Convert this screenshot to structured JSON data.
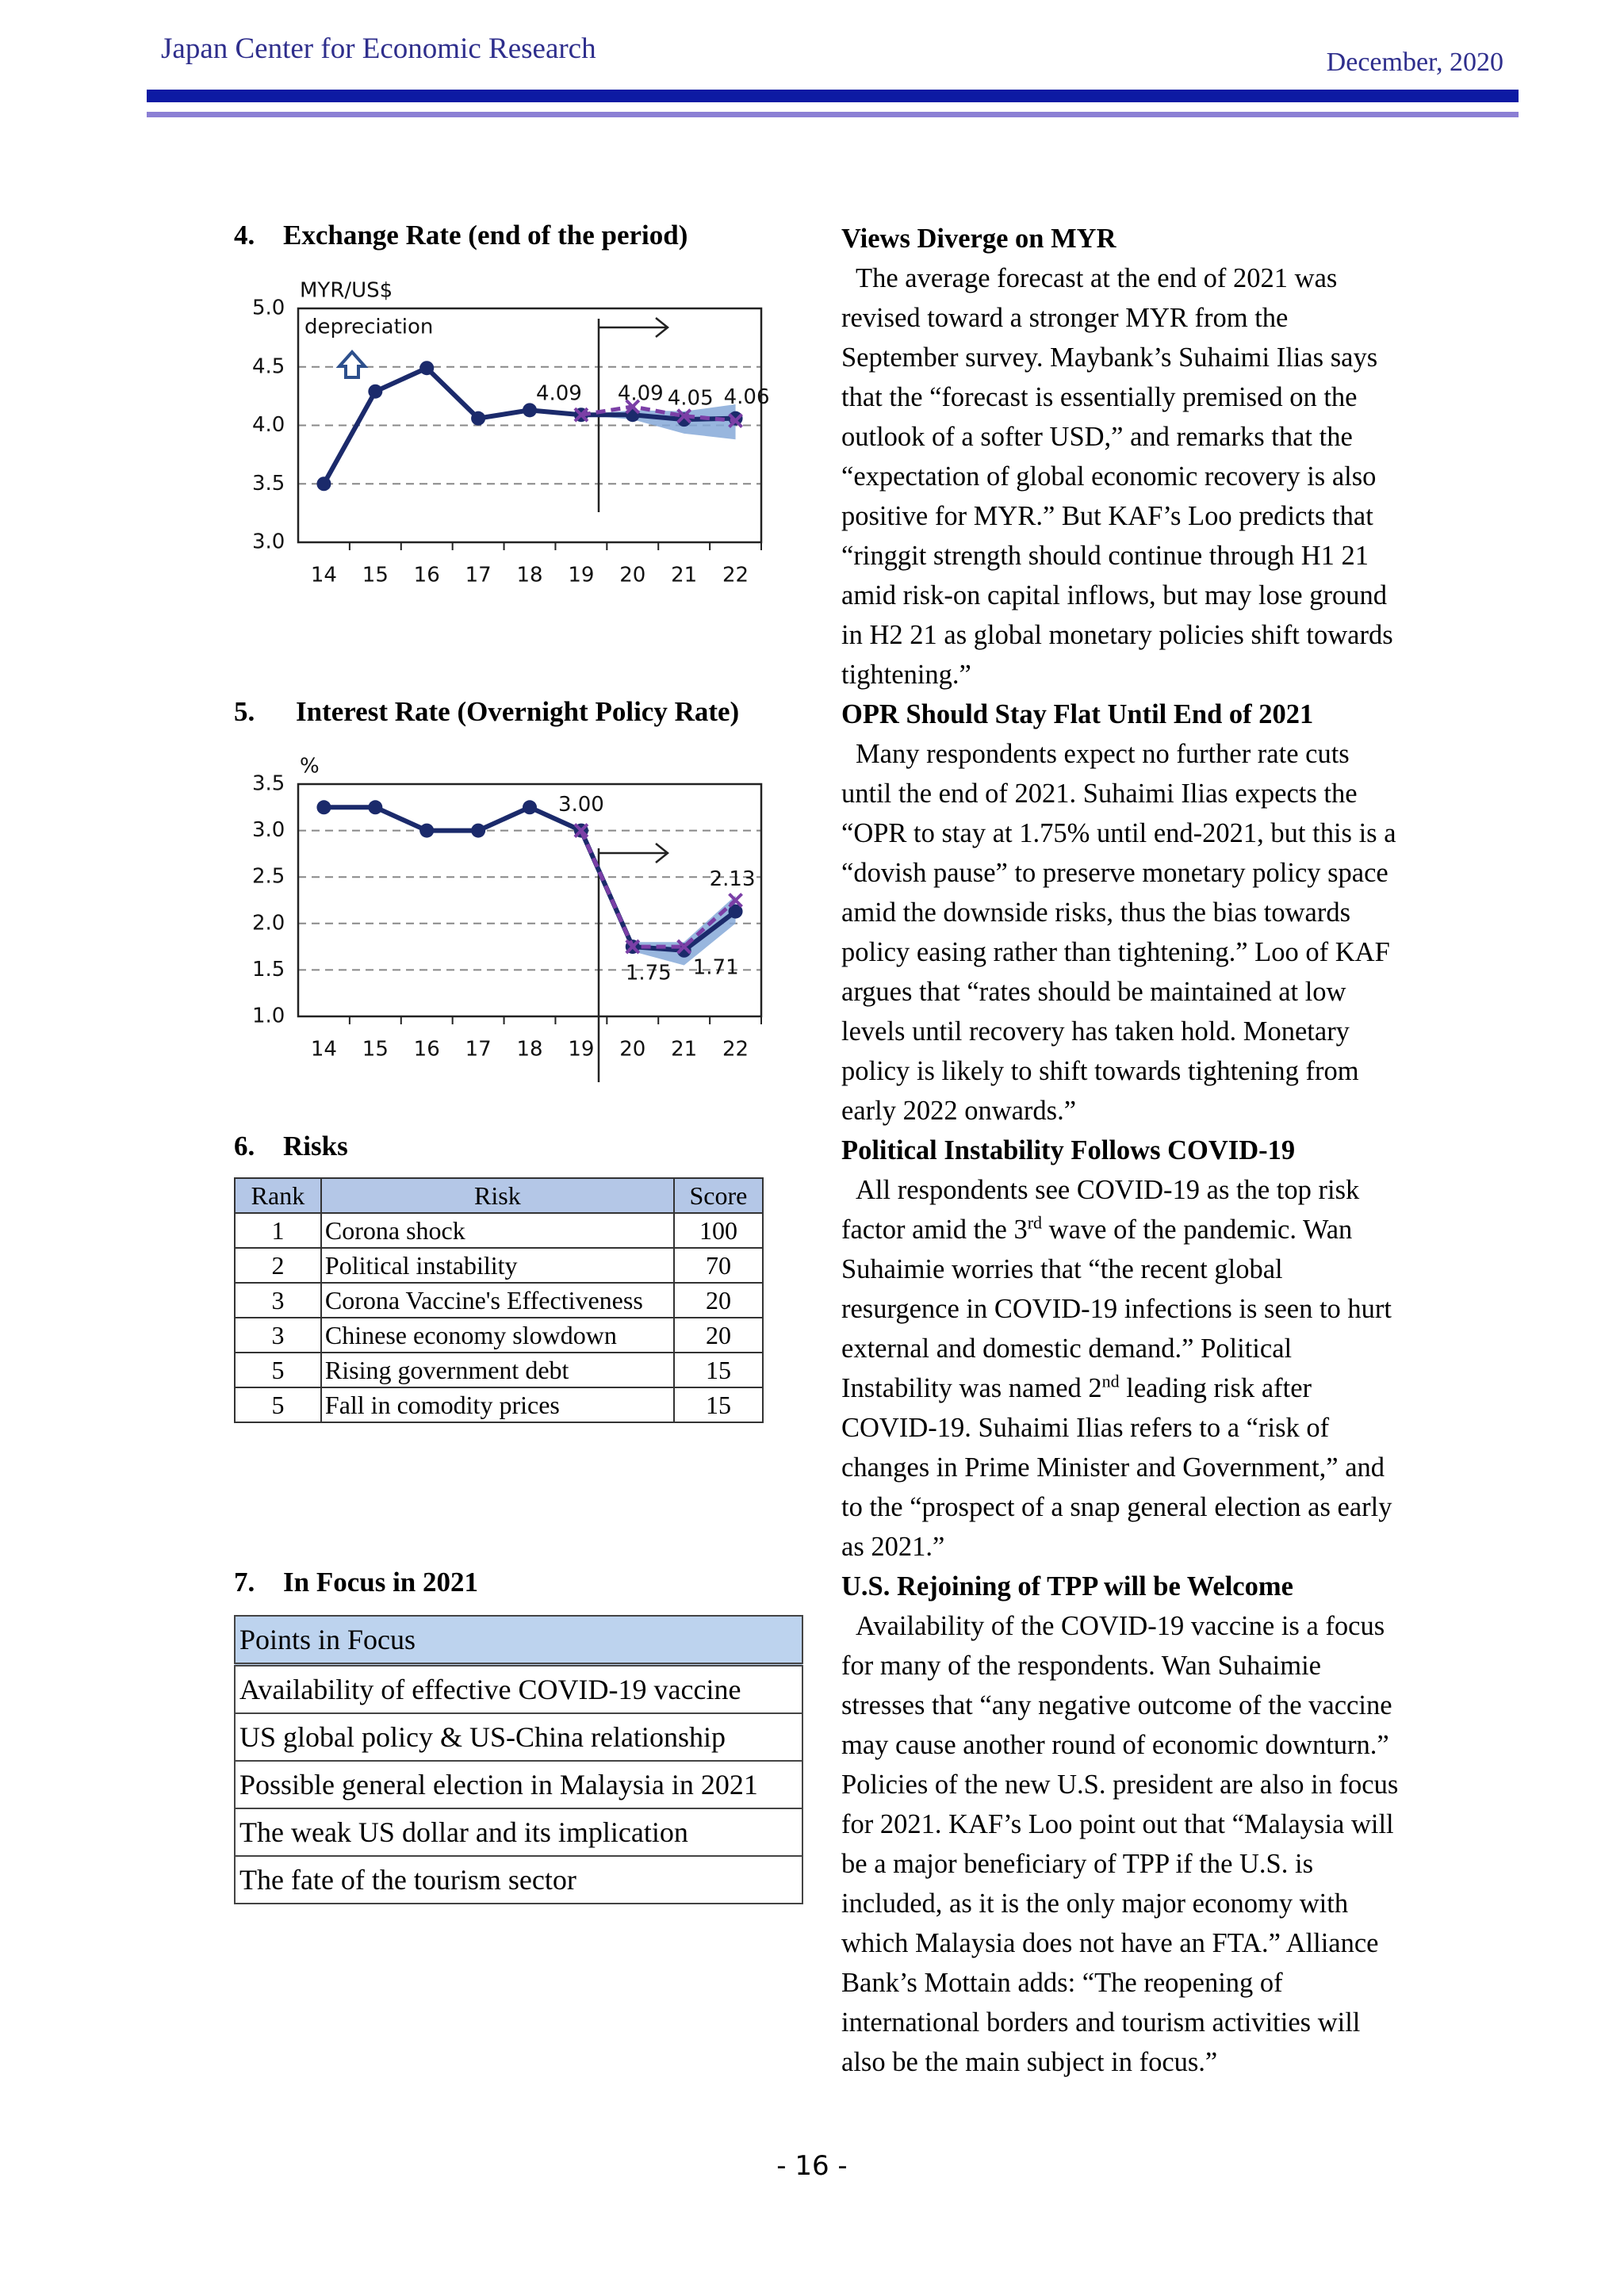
{
  "header": {
    "org": "Japan Center for Economic Research",
    "date": "December, 2020"
  },
  "chart_data": [
    {
      "type": "line",
      "number": "4.",
      "title": "Exchange Rate (end of the period)",
      "unit_label": "MYR/US$",
      "annotation": "depreciation",
      "categories": [
        "14",
        "15",
        "16",
        "17",
        "18",
        "19",
        "20",
        "21",
        "22"
      ],
      "series": [
        {
          "color": "#1b2a6b",
          "values": [
            3.5,
            4.29,
            4.49,
            4.06,
            4.13,
            4.09,
            4.09,
            4.05,
            4.06
          ],
          "value_labels": [
            null,
            null,
            null,
            null,
            null,
            "4.09",
            "4.09",
            "4.05",
            "4.06"
          ]
        },
        {
          "color": "#7b3fa6",
          "dashed": true,
          "marker": "x",
          "values": [
            null,
            null,
            null,
            null,
            null,
            4.09,
            4.16,
            4.08,
            4.04
          ]
        }
      ],
      "band": {
        "color": "#86a9d8",
        "low": [
          null,
          null,
          null,
          null,
          null,
          4.09,
          4.05,
          3.93,
          3.88
        ],
        "high": [
          null,
          null,
          null,
          null,
          null,
          4.09,
          4.13,
          4.12,
          4.18
        ]
      },
      "ylim": [
        3,
        5
      ],
      "yticks": [
        {
          "value": 3,
          "label": "3.0"
        },
        {
          "value": 3.5,
          "label": "3.5"
        },
        {
          "value": 4,
          "label": "4.0"
        },
        {
          "value": 4.5,
          "label": "4.5"
        },
        {
          "value": 5,
          "label": "5.0"
        }
      ],
      "grid": true
    },
    {
      "type": "line",
      "number": "5.",
      "title": "Interest Rate (Overnight Policy Rate)",
      "unit_label": "%",
      "categories": [
        "14",
        "15",
        "16",
        "17",
        "18",
        "19",
        "20",
        "21",
        "22"
      ],
      "series": [
        {
          "color": "#1b2a6b",
          "values": [
            3.25,
            3.25,
            3.0,
            3.0,
            3.25,
            3.0,
            1.75,
            1.71,
            2.13
          ],
          "value_labels": [
            null,
            null,
            null,
            null,
            null,
            "3.00",
            "1.75",
            "1.71",
            "2.13"
          ]
        },
        {
          "color": "#7b3fa6",
          "dashed": true,
          "marker": "x",
          "values": [
            null,
            null,
            null,
            null,
            null,
            3.0,
            1.75,
            1.75,
            2.25
          ]
        }
      ],
      "band": {
        "color": "#86a9d8",
        "low": [
          null,
          null,
          null,
          null,
          null,
          3.0,
          1.7,
          1.55,
          2.0
        ],
        "high": [
          null,
          null,
          null,
          null,
          null,
          3.0,
          1.8,
          1.8,
          2.3
        ]
      },
      "ylim": [
        1,
        3.5
      ],
      "yticks": [
        {
          "value": 1,
          "label": "1.0"
        },
        {
          "value": 1.5,
          "label": "1.5"
        },
        {
          "value": 2,
          "label": "2.0"
        },
        {
          "value": 2.5,
          "label": "2.5"
        },
        {
          "value": 3,
          "label": "3.0"
        },
        {
          "value": 3.5,
          "label": "3.5"
        }
      ],
      "grid": true
    }
  ],
  "risks": {
    "number": "6.",
    "title": "Risks",
    "columns": [
      "Rank",
      "Risk",
      "Score"
    ],
    "rows": [
      [
        1,
        "Corona shock",
        100
      ],
      [
        2,
        "Political instability",
        70
      ],
      [
        3,
        "Corona Vaccine's Effectiveness",
        20
      ],
      [
        3,
        "Chinese economy slowdown",
        20
      ],
      [
        5,
        "Rising government debt",
        15
      ],
      [
        5,
        "Fall in comodity prices",
        15
      ]
    ]
  },
  "focus": {
    "number": "7.",
    "title": "In Focus in 2021",
    "header": "Points in Focus",
    "rows": [
      "Availability of effective COVID-19  vaccine",
      "US global policy & US-China relationship",
      "Possible general election in Malaysia in 2021",
      "The weak US dollar and its implication",
      "The fate of the tourism sector"
    ]
  },
  "article": [
    {
      "heading": "Views Diverge on MYR",
      "runs": [
        {
          "text": "The average forecast at the end of 2021 was revised toward a stronger MYR from the September survey. Maybank’s Suhaimi Ilias says that the “forecast is essentially premised on the outlook of a softer USD,” and remarks that the “expectation of global economic recovery is also positive for MYR.” But KAF’s Loo predicts that “ringgit strength should continue through H1 21 amid risk-on capital inflows, but may lose ground in H2 21 as global monetary policies shift towards tightening.”"
        }
      ]
    },
    {
      "heading": "OPR Should Stay Flat Until End of 2021",
      "runs": [
        {
          "text": "Many respondents expect no further rate cuts until the end of 2021. Suhaimi Ilias expects the “OPR to stay at 1.75% until end-2021, but this is a “dovish pause” to preserve monetary policy space amid the downside risks, thus the bias towards policy easing rather than tightening.” Loo of KAF argues that “rates should be maintained at low levels until recovery has taken hold. Monetary policy is likely to shift towards tightening from early 2022 onwards.”"
        }
      ]
    },
    {
      "heading": "Political Instability Follows COVID-19",
      "runs": [
        {
          "text": "All respondents see COVID-19 as the top risk factor amid the 3"
        },
        {
          "sup": "rd"
        },
        {
          "text": " wave of the pandemic. Wan Suhaimie worries that “the recent global resurgence in COVID-19 infections is seen to hurt external and domestic demand.” Political Instability was named 2"
        },
        {
          "sup": "nd"
        },
        {
          "text": " leading risk after COVID-19. Suhaimi Ilias refers to a “risk of changes in Prime Minister and Government,” and to the “prospect of a snap general election as early as 2021.”"
        }
      ]
    },
    {
      "heading": "U.S. Rejoining of TPP will be Welcome",
      "runs": [
        {
          "text": "Availability of the COVID-19 vaccine is a focus for many of the respondents. Wan Suhaimie stresses that “any negative outcome of the vaccine may cause another round of economic downturn.” Policies of the new U.S. president are also in focus for 2021. KAF’s Loo point out that “Malaysia will be a major beneficiary of TPP if the U.S. is included, as it is the only major economy with which Malaysia does not have an FTA.” Alliance Bank’s Mottain adds: “The reopening of international borders and tourism activities will also be the main subject in focus.”"
        }
      ]
    }
  ],
  "page_number": "- 16 -"
}
